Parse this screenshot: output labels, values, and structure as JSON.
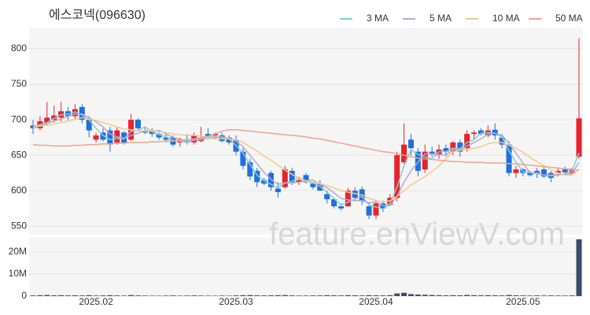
{
  "chart_data": {
    "type": "candlestick",
    "title": "에스코넥(096630)",
    "watermark": "feature.enViewV.com",
    "up_color": "#e8232c",
    "down_color": "#1f6fe0",
    "volume_color": "#3d4a6b",
    "categories": [
      null,
      null,
      null,
      null,
      null,
      null,
      null,
      null,
      null,
      "2025.02",
      null,
      null,
      null,
      null,
      null,
      null,
      null,
      null,
      null,
      null,
      null,
      null,
      null,
      null,
      null,
      null,
      null,
      null,
      null,
      "2025.03",
      null,
      null,
      null,
      null,
      null,
      null,
      null,
      null,
      null,
      null,
      null,
      null,
      null,
      null,
      null,
      null,
      null,
      null,
      null,
      "2025.04",
      null,
      null,
      null,
      null,
      null,
      null,
      null,
      null,
      null,
      null,
      null,
      null,
      null,
      null,
      null,
      null,
      null,
      null,
      null,
      null,
      "2025.05",
      null,
      null,
      null,
      null,
      null,
      null,
      null,
      null
    ],
    "open": [
      692,
      688,
      695,
      700,
      703,
      712,
      705,
      718,
      700,
      672,
      682,
      685,
      668,
      682,
      672,
      700,
      685,
      684,
      680,
      675,
      675,
      668,
      670,
      668,
      670,
      680,
      678,
      678,
      675,
      672,
      655,
      640,
      628,
      615,
      625,
      603,
      605,
      628,
      612,
      622,
      610,
      610,
      595,
      588,
      578,
      578,
      600,
      602,
      578,
      565,
      582,
      580,
      590,
      640,
      672,
      655,
      630,
      655,
      650,
      660,
      655,
      668,
      660,
      680,
      685,
      678,
      686,
      675,
      665,
      625,
      630,
      625,
      628,
      630,
      625,
      625,
      630,
      625,
      648
    ],
    "high": [
      700,
      705,
      725,
      720,
      725,
      718,
      722,
      722,
      705,
      682,
      688,
      690,
      690,
      684,
      708,
      702,
      690,
      688,
      682,
      680,
      678,
      675,
      680,
      682,
      690,
      688,
      682,
      682,
      678,
      678,
      660,
      645,
      632,
      618,
      628,
      612,
      635,
      632,
      618,
      625,
      612,
      615,
      600,
      590,
      582,
      604,
      605,
      606,
      584,
      586,
      586,
      595,
      655,
      695,
      680,
      660,
      665,
      662,
      665,
      665,
      670,
      672,
      685,
      685,
      688,
      692,
      695,
      680,
      670,
      635,
      632,
      628,
      632,
      635,
      628,
      632,
      634,
      632,
      815
    ],
    "low": [
      680,
      685,
      692,
      696,
      698,
      700,
      700,
      695,
      675,
      668,
      670,
      655,
      665,
      665,
      670,
      685,
      680,
      676,
      672,
      668,
      662,
      662,
      665,
      665,
      668,
      672,
      672,
      668,
      665,
      650,
      630,
      615,
      605,
      608,
      600,
      590,
      603,
      608,
      608,
      610,
      602,
      600,
      582,
      575,
      572,
      578,
      585,
      580,
      560,
      560,
      570,
      578,
      585,
      638,
      650,
      620,
      625,
      648,
      645,
      648,
      650,
      648,
      655,
      672,
      678,
      675,
      672,
      660,
      620,
      618,
      620,
      620,
      618,
      618,
      612,
      620,
      622,
      622,
      645
    ],
    "close": [
      688,
      698,
      703,
      706,
      712,
      705,
      715,
      700,
      685,
      678,
      672,
      665,
      685,
      668,
      700,
      688,
      682,
      680,
      675,
      672,
      665,
      672,
      668,
      678,
      675,
      676,
      680,
      670,
      668,
      655,
      635,
      620,
      612,
      610,
      605,
      598,
      630,
      612,
      615,
      612,
      605,
      600,
      588,
      578,
      575,
      600,
      590,
      585,
      565,
      582,
      575,
      590,
      650,
      665,
      660,
      628,
      655,
      652,
      658,
      655,
      668,
      655,
      680,
      682,
      680,
      685,
      678,
      665,
      625,
      630,
      625,
      622,
      625,
      620,
      618,
      628,
      626,
      630,
      702
    ],
    "volume": [
      300000,
      400000,
      500000,
      350000,
      400000,
      300000,
      350000,
      300000,
      400000,
      250000,
      300000,
      400000,
      300000,
      250000,
      450000,
      300000,
      250000,
      200000,
      200000,
      250000,
      300000,
      200000,
      250000,
      300000,
      250000,
      200000,
      200000,
      250000,
      200000,
      300000,
      400000,
      450000,
      350000,
      300000,
      350000,
      400000,
      450000,
      300000,
      250000,
      250000,
      300000,
      300000,
      400000,
      350000,
      300000,
      400000,
      350000,
      300000,
      400000,
      350000,
      300000,
      400000,
      1200000,
      1500000,
      900000,
      700000,
      600000,
      500000,
      400000,
      350000,
      400000,
      350000,
      500000,
      400000,
      350000,
      400000,
      350000,
      300000,
      500000,
      350000,
      300000,
      250000,
      300000,
      250000,
      300000,
      250000,
      250000,
      300000,
      25700000
    ],
    "ylim": [
      538,
      830
    ],
    "yticks": [
      550,
      600,
      650,
      700,
      750,
      800
    ],
    "volume_ylim": [
      0,
      26400000
    ],
    "volume_yticks": [
      0,
      {
        "value": 10000000,
        "label": "10M"
      },
      {
        "value": 20000000,
        "label": "20M"
      }
    ],
    "series": [
      {
        "name": "3 MA",
        "color": "#7fd1d8",
        "values": [
          690,
          693,
          696,
          702,
          707,
          708,
          711,
          707,
          700,
          688,
          678,
          672,
          674,
          673,
          684,
          685,
          690,
          683,
          679,
          676,
          671,
          670,
          668,
          673,
          674,
          676,
          677,
          675,
          673,
          664,
          653,
          637,
          622,
          614,
          609,
          604,
          611,
          613,
          619,
          613,
          611,
          606,
          598,
          589,
          580,
          584,
          588,
          592,
          580,
          577,
          574,
          582,
          605,
          635,
          658,
          651,
          648,
          645,
          655,
          655,
          660,
          659,
          668,
          672,
          681,
          682,
          681,
          676,
          656,
          640,
          627,
          626,
          624,
          622,
          621,
          622,
          624,
          628,
          653
        ]
      },
      {
        "name": "5 MA",
        "color": "#b9a7d0",
        "values": [
          688,
          692,
          695,
          698,
          701,
          705,
          708,
          708,
          703,
          697,
          690,
          680,
          676,
          674,
          678,
          681,
          685,
          684,
          685,
          680,
          675,
          673,
          670,
          671,
          672,
          674,
          675,
          676,
          674,
          670,
          662,
          650,
          638,
          626,
          616,
          609,
          611,
          611,
          612,
          614,
          615,
          609,
          604,
          597,
          589,
          587,
          586,
          586,
          583,
          584,
          579,
          579,
          592,
          612,
          628,
          640,
          652,
          652,
          651,
          650,
          658,
          658,
          663,
          668,
          673,
          680,
          681,
          678,
          667,
          653,
          639,
          625,
          625,
          622,
          622,
          623,
          623,
          624,
          640
        ]
      },
      {
        "name": "10 MA",
        "color": "#f3c98b",
        "values": [
          690,
          691,
          692,
          694,
          696,
          698,
          701,
          703,
          701,
          699,
          696,
          693,
          690,
          687,
          686,
          685,
          684,
          685,
          683,
          682,
          680,
          679,
          678,
          678,
          677,
          674,
          673,
          673,
          673,
          672,
          668,
          662,
          656,
          649,
          643,
          636,
          629,
          623,
          618,
          614,
          612,
          610,
          607,
          604,
          600,
          598,
          596,
          594,
          589,
          586,
          584,
          586,
          592,
          600,
          608,
          614,
          620,
          627,
          635,
          645,
          655,
          657,
          658,
          660,
          662,
          666,
          668,
          668,
          664,
          660,
          654,
          647,
          641,
          635,
          630,
          625,
          622,
          622,
          630
        ]
      },
      {
        "name": "50 MA",
        "color": "#f4a08c",
        "values": [
          665,
          664,
          664,
          663,
          663,
          663,
          664,
          664,
          665,
          665,
          666,
          666,
          667,
          667,
          668,
          668,
          668,
          669,
          669,
          670,
          670,
          671,
          672,
          673,
          675,
          677,
          680,
          684,
          686,
          686,
          685,
          684,
          683,
          682,
          681,
          680,
          679,
          678,
          677,
          676,
          674,
          673,
          671,
          669,
          667,
          665,
          663,
          661,
          659,
          657,
          655,
          654,
          652,
          650,
          648,
          646,
          645,
          644,
          643,
          642,
          641,
          641,
          640,
          640,
          640,
          639,
          639,
          639,
          638,
          638,
          637,
          636,
          635,
          634,
          633,
          632,
          631,
          630,
          629
        ]
      }
    ]
  }
}
